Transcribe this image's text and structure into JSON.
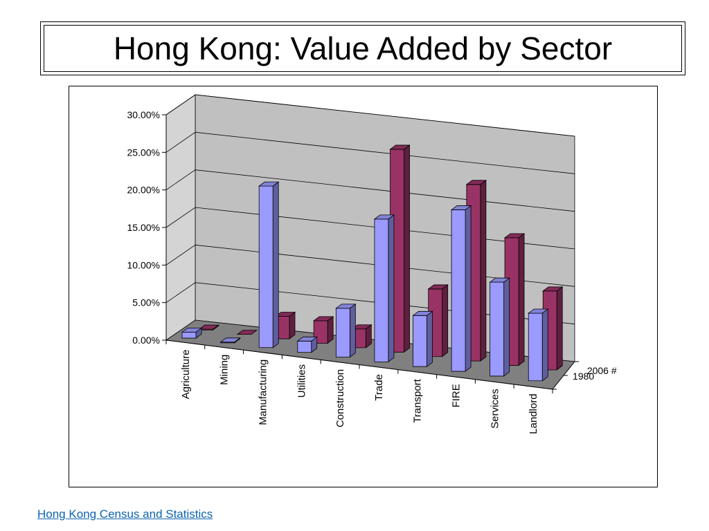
{
  "slide": {
    "title": "Hong Kong: Value Added by Sector",
    "source_link": "Hong Kong Census and Statistics"
  },
  "colors": {
    "series_1980": "#9a9aff",
    "series_2006": "#993366",
    "wall": "#c0c0c0",
    "floor": "#808080",
    "link": "#0b62b0"
  },
  "chart_data": {
    "type": "bar",
    "style": "3d-clustered-depth",
    "categories": [
      "Agriculture",
      "Mining",
      "Manufacturing",
      "Utilities",
      "Construction",
      "Trade",
      "Transport",
      "FIRE",
      "Services",
      "Landlord"
    ],
    "series": [
      {
        "name": "1980",
        "values": [
          0.8,
          0.1,
          21.5,
          1.5,
          6.5,
          19.0,
          6.8,
          21.5,
          12.5,
          9.0
        ]
      },
      {
        "name": "2006 #",
        "values": [
          0.1,
          0.0,
          3.0,
          3.0,
          2.5,
          27.0,
          9.0,
          23.5,
          17.0,
          10.5
        ]
      }
    ],
    "yticks": [
      "0.00%",
      "5.00%",
      "10.00%",
      "15.00%",
      "20.00%",
      "25.00%",
      "30.00%"
    ],
    "ylim": [
      0,
      30
    ],
    "grid": true,
    "legend": "right"
  }
}
